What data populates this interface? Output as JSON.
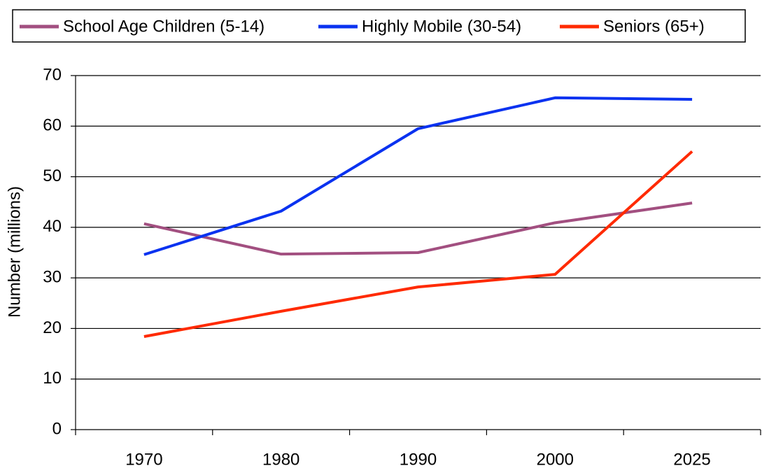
{
  "chart_data": {
    "type": "line",
    "categories": [
      "1970",
      "1980",
      "1990",
      "2000",
      "2025"
    ],
    "series": [
      {
        "name": "School Age Children (5-14)",
        "color": "#a24f80",
        "values": [
          40.7,
          34.7,
          35.0,
          40.9,
          44.8
        ]
      },
      {
        "name": "Highly Mobile (30-54)",
        "color": "#0a32f0",
        "values": [
          34.6,
          43.2,
          59.5,
          65.6,
          65.3
        ]
      },
      {
        "name": "Seniors (65+)",
        "color": "#ff2a00",
        "values": [
          18.4,
          23.4,
          28.2,
          30.7,
          55.0
        ]
      }
    ],
    "y_label": "Number (millions)",
    "ylim": [
      0,
      70
    ],
    "yticks": [
      0,
      10,
      20,
      30,
      40,
      50,
      60,
      70
    ],
    "grid": true,
    "legend": "top"
  }
}
